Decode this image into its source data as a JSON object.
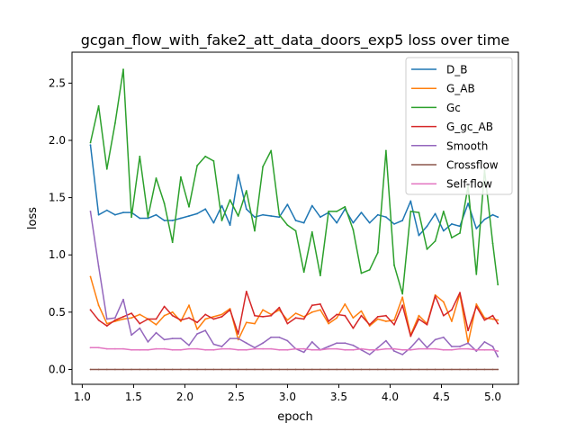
{
  "chart_data": {
    "type": "line",
    "title": "gcgan_flow_with_fake2_att_data_doors_exp5 loss over time",
    "xlabel": "epoch",
    "ylabel": "loss",
    "xlim": [
      0.9,
      5.25
    ],
    "ylim": [
      -0.13,
      2.77
    ],
    "xticks": [
      1.0,
      1.5,
      2.0,
      2.5,
      3.0,
      3.5,
      4.0,
      4.5,
      5.0
    ],
    "xtick_labels": [
      "1.0",
      "1.5",
      "2.0",
      "2.5",
      "3.0",
      "3.5",
      "4.0",
      "4.5",
      "5.0"
    ],
    "yticks": [
      0.0,
      0.5,
      1.0,
      1.5,
      2.0,
      2.5
    ],
    "ytick_labels": [
      "0.0",
      "0.5",
      "1.0",
      "1.5",
      "2.0",
      "2.5"
    ],
    "grid": false,
    "legend_position": "upper right",
    "x": [
      1.08,
      1.16,
      1.24,
      1.32,
      1.4,
      1.48,
      1.56,
      1.64,
      1.72,
      1.8,
      1.88,
      1.96,
      2.04,
      2.12,
      2.2,
      2.28,
      2.36,
      2.44,
      2.52,
      2.6,
      2.68,
      2.76,
      2.84,
      2.92,
      3.0,
      3.08,
      3.16,
      3.24,
      3.32,
      3.4,
      3.48,
      3.56,
      3.64,
      3.72,
      3.8,
      3.88,
      3.96,
      4.04,
      4.12,
      4.2,
      4.28,
      4.36,
      4.44,
      4.52,
      4.6,
      4.68,
      4.76,
      4.84,
      4.92,
      5.0,
      5.05
    ],
    "series": [
      {
        "name": "D_B",
        "color": "#1f77b4",
        "values": [
          1.96,
          1.35,
          1.39,
          1.35,
          1.37,
          1.37,
          1.32,
          1.32,
          1.35,
          1.3,
          1.3,
          1.32,
          1.34,
          1.36,
          1.4,
          1.28,
          1.43,
          1.26,
          1.7,
          1.4,
          1.33,
          1.35,
          1.34,
          1.33,
          1.44,
          1.3,
          1.28,
          1.43,
          1.33,
          1.37,
          1.28,
          1.4,
          1.28,
          1.37,
          1.28,
          1.35,
          1.33,
          1.27,
          1.3,
          1.47,
          1.17,
          1.25,
          1.36,
          1.21,
          1.27,
          1.25,
          1.45,
          1.23,
          1.31,
          1.35,
          1.33
        ]
      },
      {
        "name": "G_AB",
        "color": "#ff7f0e",
        "values": [
          0.81,
          0.56,
          0.4,
          0.42,
          0.44,
          0.45,
          0.48,
          0.44,
          0.39,
          0.47,
          0.5,
          0.42,
          0.56,
          0.35,
          0.44,
          0.46,
          0.48,
          0.53,
          0.26,
          0.41,
          0.4,
          0.52,
          0.48,
          0.52,
          0.43,
          0.49,
          0.46,
          0.5,
          0.52,
          0.4,
          0.45,
          0.57,
          0.45,
          0.51,
          0.38,
          0.44,
          0.42,
          0.43,
          0.63,
          0.3,
          0.47,
          0.4,
          0.65,
          0.59,
          0.42,
          0.66,
          0.23,
          0.57,
          0.45,
          0.44,
          0.43
        ]
      },
      {
        "name": "Gc",
        "color": "#2ca02c",
        "values": [
          1.98,
          2.3,
          1.75,
          2.15,
          2.62,
          1.33,
          1.86,
          1.33,
          1.67,
          1.45,
          1.11,
          1.68,
          1.42,
          1.78,
          1.86,
          1.82,
          1.3,
          1.48,
          1.34,
          1.56,
          1.21,
          1.77,
          1.91,
          1.35,
          1.26,
          1.21,
          0.85,
          1.2,
          0.82,
          1.38,
          1.38,
          1.42,
          1.22,
          0.84,
          0.87,
          1.02,
          1.91,
          0.91,
          0.66,
          1.38,
          1.37,
          1.05,
          1.12,
          1.38,
          1.15,
          1.19,
          1.6,
          0.83,
          1.74,
          1.1,
          0.74
        ]
      },
      {
        "name": "G_gc_AB",
        "color": "#d62728",
        "values": [
          0.52,
          0.43,
          0.38,
          0.43,
          0.46,
          0.49,
          0.4,
          0.44,
          0.44,
          0.55,
          0.47,
          0.43,
          0.45,
          0.41,
          0.48,
          0.44,
          0.46,
          0.52,
          0.31,
          0.68,
          0.47,
          0.46,
          0.47,
          0.54,
          0.4,
          0.45,
          0.44,
          0.56,
          0.57,
          0.42,
          0.48,
          0.47,
          0.36,
          0.47,
          0.39,
          0.46,
          0.47,
          0.39,
          0.56,
          0.29,
          0.44,
          0.39,
          0.64,
          0.47,
          0.52,
          0.67,
          0.34,
          0.55,
          0.43,
          0.47,
          0.4
        ]
      },
      {
        "name": "Smooth",
        "color": "#9467bd",
        "values": [
          1.38,
          0.9,
          0.44,
          0.45,
          0.61,
          0.3,
          0.36,
          0.24,
          0.32,
          0.26,
          0.27,
          0.27,
          0.21,
          0.31,
          0.34,
          0.22,
          0.2,
          0.27,
          0.27,
          0.23,
          0.19,
          0.23,
          0.28,
          0.28,
          0.25,
          0.18,
          0.15,
          0.24,
          0.17,
          0.2,
          0.23,
          0.23,
          0.21,
          0.17,
          0.13,
          0.19,
          0.25,
          0.16,
          0.13,
          0.19,
          0.27,
          0.19,
          0.26,
          0.28,
          0.2,
          0.2,
          0.23,
          0.16,
          0.24,
          0.2,
          0.11
        ]
      },
      {
        "name": "Crossflow",
        "color": "#8c564b",
        "values": [
          0.0,
          0.0,
          0.0,
          0.0,
          0.0,
          0.0,
          0.0,
          0.0,
          0.0,
          0.0,
          0.0,
          0.0,
          0.0,
          0.0,
          0.0,
          0.0,
          0.0,
          0.0,
          0.0,
          0.0,
          0.0,
          0.0,
          0.0,
          0.0,
          0.0,
          0.0,
          0.0,
          0.0,
          0.0,
          0.0,
          0.0,
          0.0,
          0.0,
          0.0,
          0.0,
          0.0,
          0.0,
          0.0,
          0.0,
          0.0,
          0.0,
          0.0,
          0.0,
          0.0,
          0.0,
          0.0,
          0.0,
          0.0,
          0.0,
          0.0,
          0.0
        ]
      },
      {
        "name": "Self-flow",
        "color": "#e377c2",
        "values": [
          0.19,
          0.19,
          0.18,
          0.18,
          0.18,
          0.17,
          0.17,
          0.17,
          0.18,
          0.18,
          0.17,
          0.17,
          0.18,
          0.18,
          0.17,
          0.17,
          0.18,
          0.18,
          0.17,
          0.17,
          0.18,
          0.18,
          0.18,
          0.17,
          0.17,
          0.18,
          0.18,
          0.17,
          0.17,
          0.18,
          0.18,
          0.17,
          0.17,
          0.18,
          0.17,
          0.17,
          0.18,
          0.18,
          0.17,
          0.17,
          0.18,
          0.18,
          0.18,
          0.17,
          0.17,
          0.18,
          0.18,
          0.17,
          0.17,
          0.17,
          0.16
        ]
      }
    ]
  }
}
